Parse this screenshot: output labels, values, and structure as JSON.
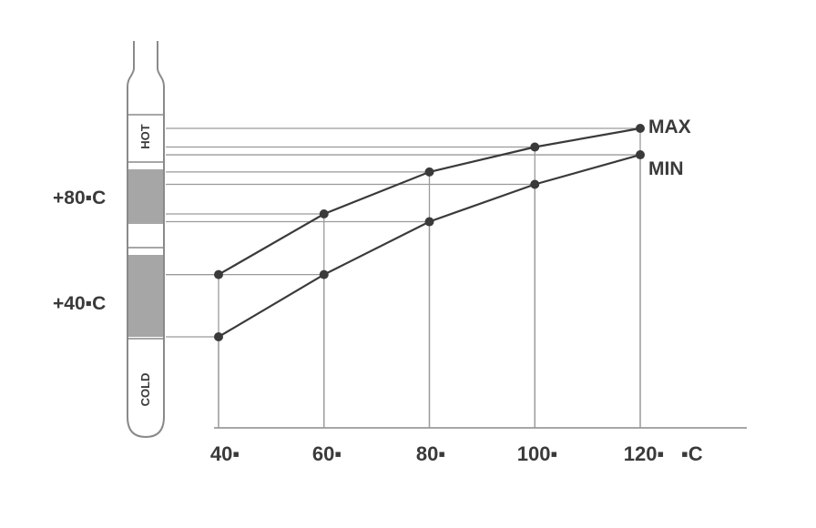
{
  "chart_data": {
    "type": "line",
    "x": [
      40,
      60,
      80,
      100,
      120
    ],
    "tick_labels": [
      "40▪",
      "60▪",
      "80▪",
      "100▪",
      "120▪"
    ],
    "unit_label": "▪C",
    "series": [
      {
        "name": "MAX",
        "values": [
          1.5,
          5.4,
          8.1,
          9.7,
          10.9
        ]
      },
      {
        "name": "MIN",
        "values": [
          -2.5,
          1.5,
          4.9,
          7.3,
          9.2
        ]
      }
    ],
    "side_labels": [
      "+80▪C",
      "+40▪C"
    ],
    "thermometer_bands": [
      "HOT",
      "COLD"
    ],
    "grid": true,
    "colors": {
      "line": "#3a3a3a",
      "grid": "#9a9a9a",
      "shade": "#a6a6a6"
    }
  }
}
